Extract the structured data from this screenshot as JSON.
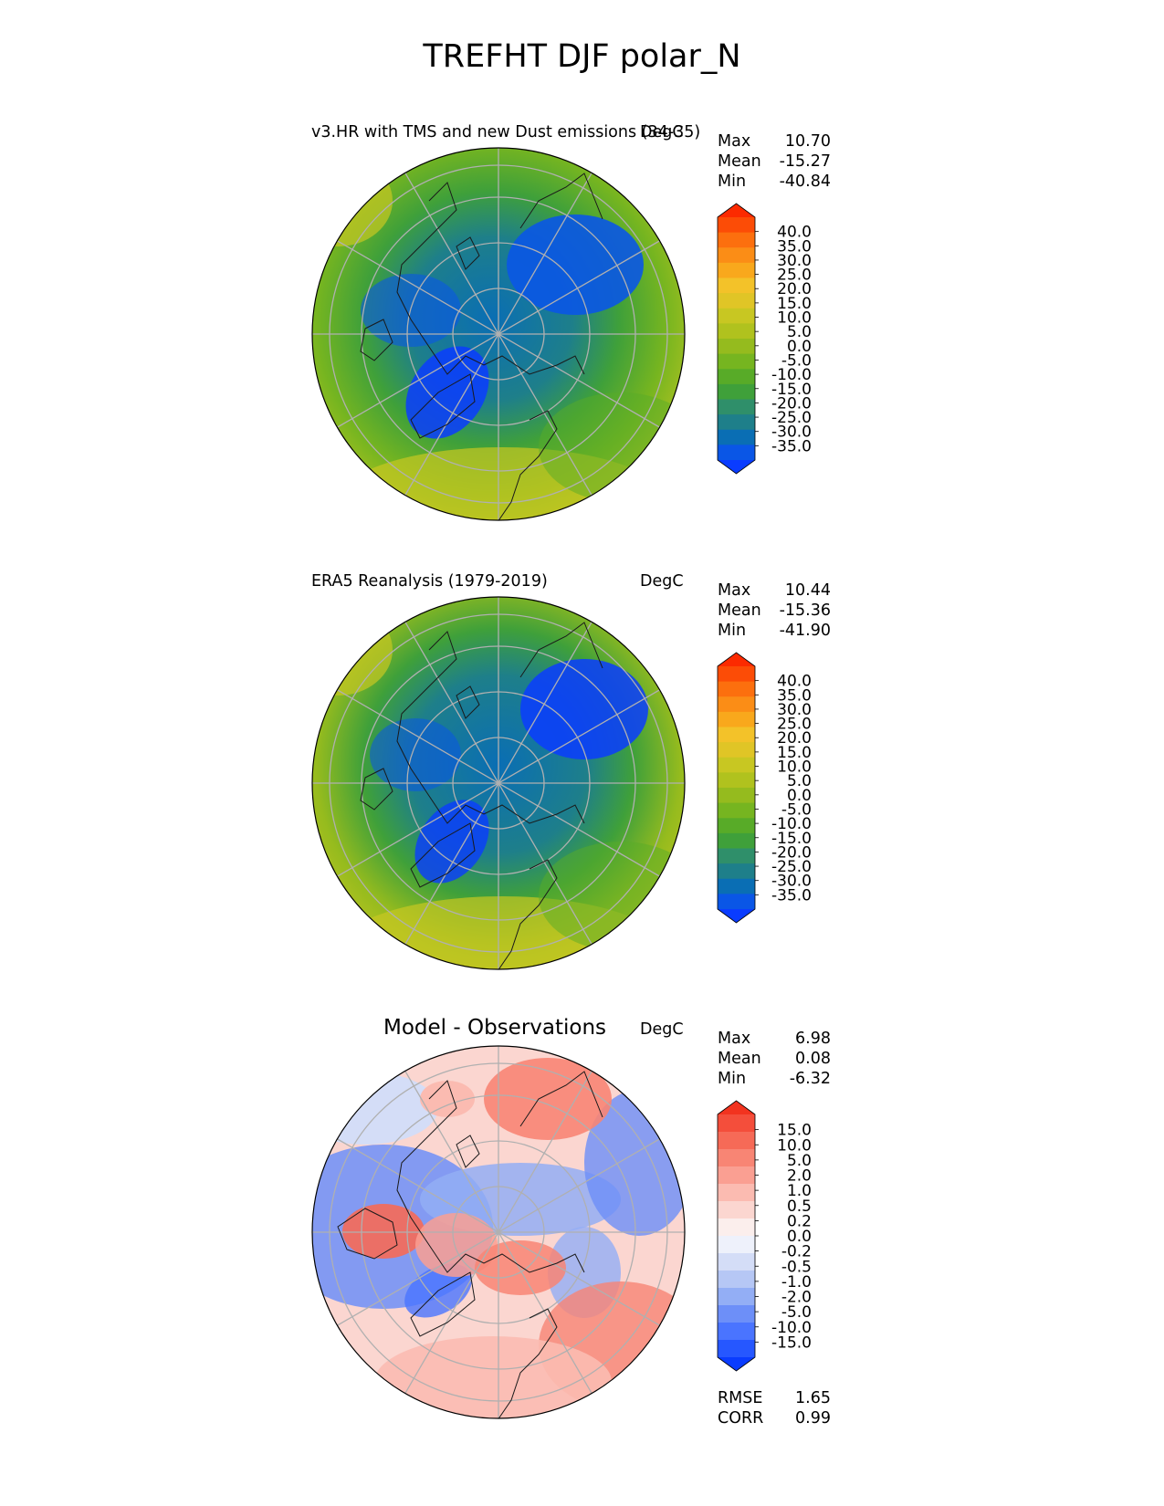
{
  "figure": {
    "title": "TREFHT DJF polar_N"
  },
  "colors": {
    "temperature_levels": [
      "#0a3cff",
      "#0a56e6",
      "#0a6eb4",
      "#1e7f8a",
      "#2f8f6a",
      "#3fa03a",
      "#58ab28",
      "#76b520",
      "#95bb1e",
      "#b0c21e",
      "#c8c722",
      "#e0c526",
      "#f3c229",
      "#f9a81c",
      "#fb8d16",
      "#fc6f0e",
      "#fc4c06",
      "#fc2a00"
    ],
    "difference_levels": [
      "#0a3cff",
      "#2657ff",
      "#4a74ff",
      "#6d8ff8",
      "#93aef5",
      "#b6c7f5",
      "#d4ddf7",
      "#eef1fb",
      "#fbeeec",
      "#fbd6d0",
      "#fbbbb1",
      "#fa9f92",
      "#f88574",
      "#f66a57",
      "#f44e3b",
      "#f2331f"
    ]
  },
  "chart_data": [
    {
      "type": "heatmap",
      "projection": "north polar stereographic",
      "title": "v3.HR with TMS and new Dust emissions (34-35)",
      "units": "DegC",
      "stats": {
        "max": "10.70",
        "mean": "-15.27",
        "min": "-40.84"
      },
      "stat_labels": {
        "max": "Max",
        "mean": "Mean",
        "min": "Min"
      },
      "colorbar": {
        "ticks": [
          "40.0",
          "35.0",
          "30.0",
          "25.0",
          "20.0",
          "15.0",
          "10.0",
          "5.0",
          "0.0",
          "-5.0",
          "-10.0",
          "-15.0",
          "-20.0",
          "-25.0",
          "-30.0",
          "-35.0"
        ],
        "extend": "both"
      }
    },
    {
      "type": "heatmap",
      "projection": "north polar stereographic",
      "title": "ERA5 Reanalysis (1979-2019)",
      "units": "DegC",
      "stats": {
        "max": "10.44",
        "mean": "-15.36",
        "min": "-41.90"
      },
      "stat_labels": {
        "max": "Max",
        "mean": "Mean",
        "min": "Min"
      },
      "colorbar": {
        "ticks": [
          "40.0",
          "35.0",
          "30.0",
          "25.0",
          "20.0",
          "15.0",
          "10.0",
          "5.0",
          "0.0",
          "-5.0",
          "-10.0",
          "-15.0",
          "-20.0",
          "-25.0",
          "-30.0",
          "-35.0"
        ],
        "extend": "both"
      }
    },
    {
      "type": "heatmap",
      "projection": "north polar stereographic",
      "title": "Model - Observations",
      "units": "DegC",
      "stats": {
        "max": "6.98",
        "mean": "0.08",
        "min": "-6.32"
      },
      "stat_labels": {
        "max": "Max",
        "mean": "Mean",
        "min": "Min"
      },
      "metrics": {
        "rmse": "1.65",
        "corr": "0.99"
      },
      "metric_labels": {
        "rmse": "RMSE",
        "corr": "CORR"
      },
      "colorbar": {
        "ticks": [
          "15.0",
          "10.0",
          "5.0",
          "2.0",
          "1.0",
          "0.5",
          "0.2",
          "0.0",
          "-0.2",
          "-0.5",
          "-1.0",
          "-2.0",
          "-5.0",
          "-10.0",
          "-15.0"
        ],
        "extend": "both"
      }
    }
  ]
}
